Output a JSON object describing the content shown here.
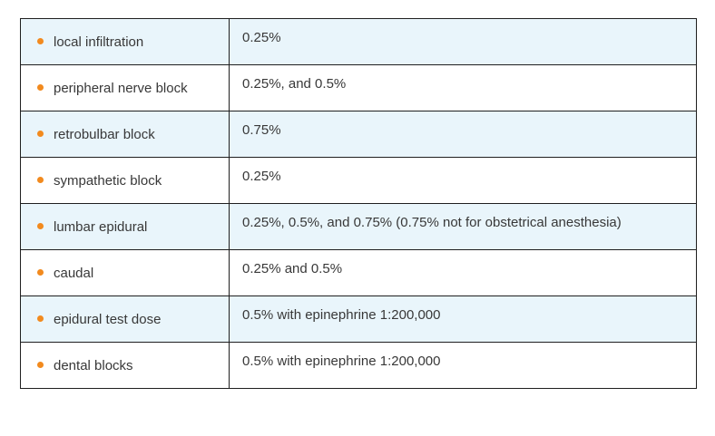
{
  "table": {
    "rows": [
      {
        "label": "local infiltration",
        "value": "0.25%"
      },
      {
        "label": "peripheral nerve block",
        "value": "0.25%, and 0.5%"
      },
      {
        "label": "retrobulbar block",
        "value": "0.75%"
      },
      {
        "label": "sympathetic block",
        "value": "0.25%"
      },
      {
        "label": "lumbar epidural",
        "value": "0.25%, 0.5%, and 0.75% (0.75% not for obstetrical anesthesia)"
      },
      {
        "label": "caudal",
        "value": "0.25% and 0.5%"
      },
      {
        "label": "epidural test dose",
        "value": "0.5% with epinephrine 1:200,000"
      },
      {
        "label": "dental blocks",
        "value": "0.5% with epinephrine 1:200,000"
      }
    ]
  },
  "colors": {
    "stripe": "#e9f5fb",
    "bullet": "#f28a1e",
    "border": "#1f1f1f",
    "text": "#383838"
  }
}
